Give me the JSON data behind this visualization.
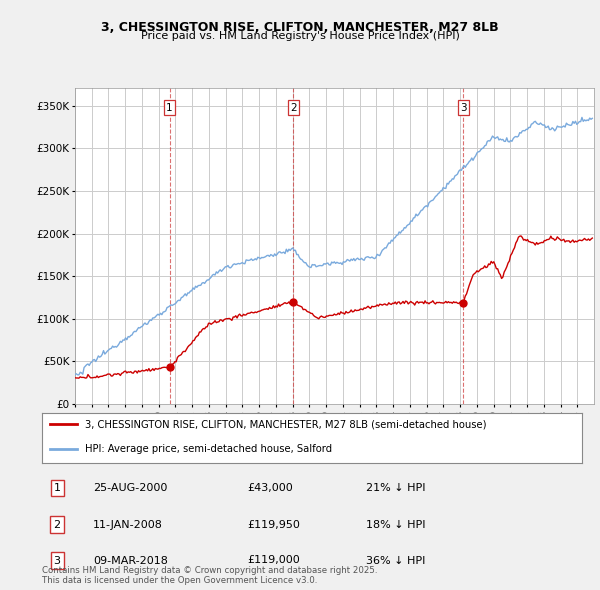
{
  "title_line1": "3, CHESSINGTON RISE, CLIFTON, MANCHESTER, M27 8LB",
  "title_line2": "Price paid vs. HM Land Registry's House Price Index (HPI)",
  "bg_color": "#f0f0f0",
  "plot_bg_color": "#ffffff",
  "grid_color": "#cccccc",
  "red_color": "#cc0000",
  "blue_color": "#7aaadd",
  "dashed_line_color": "#cc3333",
  "yticks": [
    0,
    50000,
    100000,
    150000,
    200000,
    250000,
    300000,
    350000
  ],
  "ytick_labels": [
    "£0",
    "£50K",
    "£100K",
    "£150K",
    "£200K",
    "£250K",
    "£300K",
    "£350K"
  ],
  "ylim": [
    0,
    370000
  ],
  "xlim_start": 1995,
  "xlim_end": 2026,
  "sales": [
    {
      "date": 2000.65,
      "price": 43000,
      "label": "1"
    },
    {
      "date": 2008.04,
      "price": 119950,
      "label": "2"
    },
    {
      "date": 2018.19,
      "price": 119000,
      "label": "3"
    }
  ],
  "legend_entries": [
    {
      "label": "3, CHESSINGTON RISE, CLIFTON, MANCHESTER, M27 8LB (semi-detached house)",
      "color": "#cc0000"
    },
    {
      "label": "HPI: Average price, semi-detached house, Salford",
      "color": "#7aaadd"
    }
  ],
  "table_rows": [
    {
      "num": "1",
      "date": "25-AUG-2000",
      "price": "£43,000",
      "pct": "21% ↓ HPI"
    },
    {
      "num": "2",
      "date": "11-JAN-2008",
      "price": "£119,950",
      "pct": "18% ↓ HPI"
    },
    {
      "num": "3",
      "date": "09-MAR-2018",
      "price": "£119,000",
      "pct": "36% ↓ HPI"
    }
  ],
  "footer": "Contains HM Land Registry data © Crown copyright and database right 2025.\nThis data is licensed under the Open Government Licence v3.0."
}
